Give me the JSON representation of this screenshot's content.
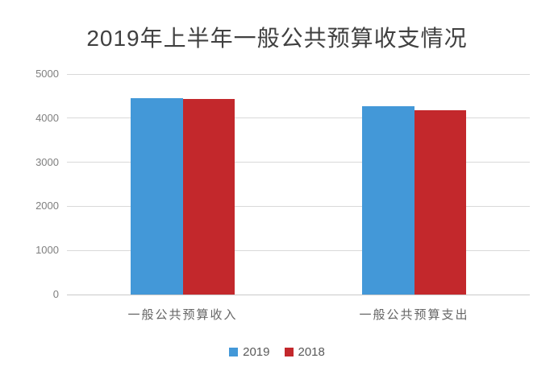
{
  "chart_data": {
    "type": "bar",
    "title": "2019年上半年一般公共预算收支情况",
    "categories": [
      "一般公共预算收入",
      "一般公共预算支出"
    ],
    "series": [
      {
        "name": "2019",
        "color": "#4398D8",
        "values": [
          4460,
          4275
        ]
      },
      {
        "name": "2018",
        "color": "#C3282C",
        "values": [
          4440,
          4185
        ]
      }
    ],
    "ylim": [
      0,
      5000
    ],
    "yticks": [
      0,
      1000,
      2000,
      3000,
      4000,
      5000
    ],
    "xlabel": "",
    "ylabel": "",
    "grid": true,
    "legend_position": "bottom",
    "styles": {
      "grid_color": "#D9D9D9",
      "axis_color": "#C9C9C9",
      "title_color": "#404040",
      "tick_color": "#7F7F7F",
      "category_color": "#666666",
      "legend_text_color": "#595959",
      "background": "#FFFFFF"
    }
  }
}
